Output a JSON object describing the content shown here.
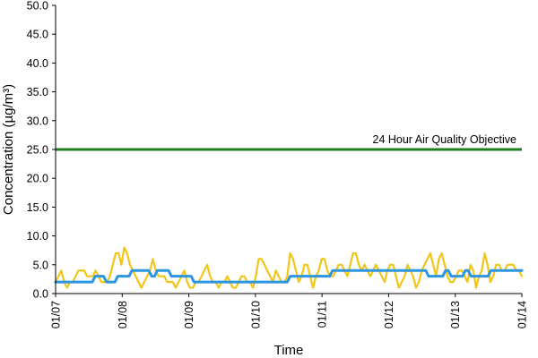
{
  "chart_data": {
    "type": "line",
    "title": "",
    "xlabel": "Time",
    "ylabel": "Concentration (µg/m³)",
    "ylim": [
      0,
      50
    ],
    "yticks": [
      "0.0",
      "5.0",
      "10.0",
      "15.0",
      "20.0",
      "25.0",
      "30.0",
      "35.0",
      "40.0",
      "45.0",
      "50.0"
    ],
    "x_ticks": [
      "01/07",
      "01/08",
      "01/09",
      "01/10",
      "01/11",
      "01/12",
      "01/13",
      "01/14"
    ],
    "x_range_days": [
      0,
      7
    ],
    "grid": false,
    "legend": "none",
    "reference_line": {
      "value": 25,
      "label": "24 Hour Air Quality Objective",
      "color": "#1f7f1f"
    },
    "series": [
      {
        "color": "#f2c518",
        "values": [
          2,
          3,
          4,
          2,
          1,
          2,
          2,
          3,
          4,
          4,
          4,
          3,
          3,
          3,
          4,
          3,
          2,
          2,
          2,
          3,
          5,
          7,
          7,
          5,
          8,
          7,
          5,
          4,
          3,
          2,
          1,
          2,
          3,
          4,
          6,
          4,
          3,
          3,
          3,
          2,
          2,
          2,
          1,
          2,
          3,
          4,
          2,
          1,
          1,
          2,
          2,
          3,
          4,
          5,
          3,
          2,
          2,
          1,
          2,
          2,
          3,
          2,
          1,
          1,
          2,
          3,
          3,
          2,
          2,
          1,
          3,
          6,
          6,
          5,
          4,
          3,
          2,
          4,
          3,
          2,
          2,
          3,
          7,
          6,
          4,
          2,
          3,
          5,
          5,
          3,
          1,
          3,
          4,
          6,
          6,
          4,
          3,
          3,
          4,
          5,
          5,
          4,
          3,
          5,
          7,
          7,
          5,
          4,
          5,
          4,
          3,
          4,
          5,
          4,
          3,
          2,
          4,
          5,
          5,
          3,
          1,
          2,
          3,
          5,
          4,
          3,
          1,
          2,
          4,
          5,
          6,
          7,
          5,
          3,
          6,
          7,
          5,
          3,
          2,
          2,
          3,
          4,
          4,
          3,
          2,
          5,
          4,
          1,
          3,
          4,
          7,
          5,
          2,
          3,
          5,
          5,
          4,
          4,
          5,
          5,
          5,
          4,
          4,
          3
        ]
      },
      {
        "color": "#2e95e0",
        "values": [
          2,
          2,
          2,
          2,
          2,
          2,
          2,
          2,
          2,
          2,
          2,
          2,
          2,
          2,
          3,
          3,
          3,
          3,
          2,
          2,
          2,
          2,
          3,
          3,
          3,
          3,
          3,
          4,
          4,
          4,
          4,
          4,
          4,
          4,
          3,
          3,
          4,
          4,
          4,
          4,
          4,
          3,
          3,
          3,
          3,
          3,
          3,
          3,
          3,
          2,
          2,
          2,
          2,
          2,
          2,
          2,
          2,
          2,
          2,
          2,
          2,
          2,
          2,
          2,
          2,
          2,
          2,
          2,
          2,
          2,
          2,
          2,
          2,
          2,
          2,
          2,
          2,
          2,
          2,
          2,
          2,
          2,
          2,
          3,
          3,
          3,
          3,
          3,
          3,
          3,
          3,
          3,
          3,
          3,
          3,
          3,
          3,
          3,
          4,
          4,
          4,
          4,
          4,
          4,
          4,
          4,
          4,
          4,
          4,
          4,
          4,
          4,
          4,
          4,
          4,
          4,
          4,
          4,
          4,
          4,
          4,
          4,
          4,
          4,
          4,
          4,
          4,
          4,
          4,
          4,
          4,
          4,
          3,
          3,
          3,
          3,
          3,
          3,
          4,
          4,
          3,
          3,
          3,
          3,
          3,
          4,
          4,
          3,
          3,
          3,
          3,
          3,
          3,
          3,
          4,
          4,
          4,
          4,
          4,
          4,
          4,
          4,
          4,
          4,
          4,
          4
        ]
      }
    ]
  }
}
